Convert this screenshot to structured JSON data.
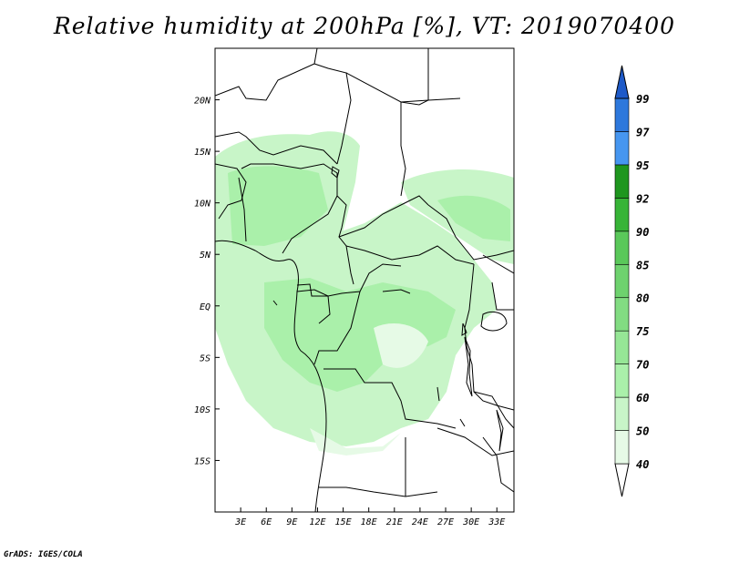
{
  "title": "Relative humidity at 200hPa [%], VT: 2019070400",
  "credit": "GrADS: IGES/COLA",
  "map": {
    "lon_range": [
      0,
      35
    ],
    "lat_range": [
      -20,
      25
    ],
    "lat_ticks": [
      {
        "value": 20,
        "label": "20N"
      },
      {
        "value": 15,
        "label": "15N"
      },
      {
        "value": 10,
        "label": "10N"
      },
      {
        "value": 5,
        "label": "5N"
      },
      {
        "value": 0,
        "label": "EQ"
      },
      {
        "value": -5,
        "label": "5S"
      },
      {
        "value": -10,
        "label": "10S"
      },
      {
        "value": -15,
        "label": "15S"
      }
    ],
    "lon_ticks": [
      {
        "value": 3,
        "label": "3E"
      },
      {
        "value": 6,
        "label": "6E"
      },
      {
        "value": 9,
        "label": "9E"
      },
      {
        "value": 12,
        "label": "12E"
      },
      {
        "value": 15,
        "label": "15E"
      },
      {
        "value": 18,
        "label": "18E"
      },
      {
        "value": 21,
        "label": "21E"
      },
      {
        "value": 24,
        "label": "24E"
      },
      {
        "value": 27,
        "label": "27E"
      },
      {
        "value": 30,
        "label": "30E"
      },
      {
        "value": 33,
        "label": "33E"
      }
    ]
  },
  "colorbar": {
    "levels": [
      "40",
      "50",
      "60",
      "70",
      "75",
      "80",
      "85",
      "90",
      "92",
      "95",
      "97",
      "99"
    ],
    "colors": [
      "#e6fae6",
      "#c8f5c8",
      "#aaf0aa",
      "#96e696",
      "#82dc82",
      "#6ed26e",
      "#5ac85a",
      "#37b437",
      "#1e961e",
      "#4696f0",
      "#2d78dc",
      "#1e5ac8"
    ],
    "bottom_color": "#ffffff"
  }
}
